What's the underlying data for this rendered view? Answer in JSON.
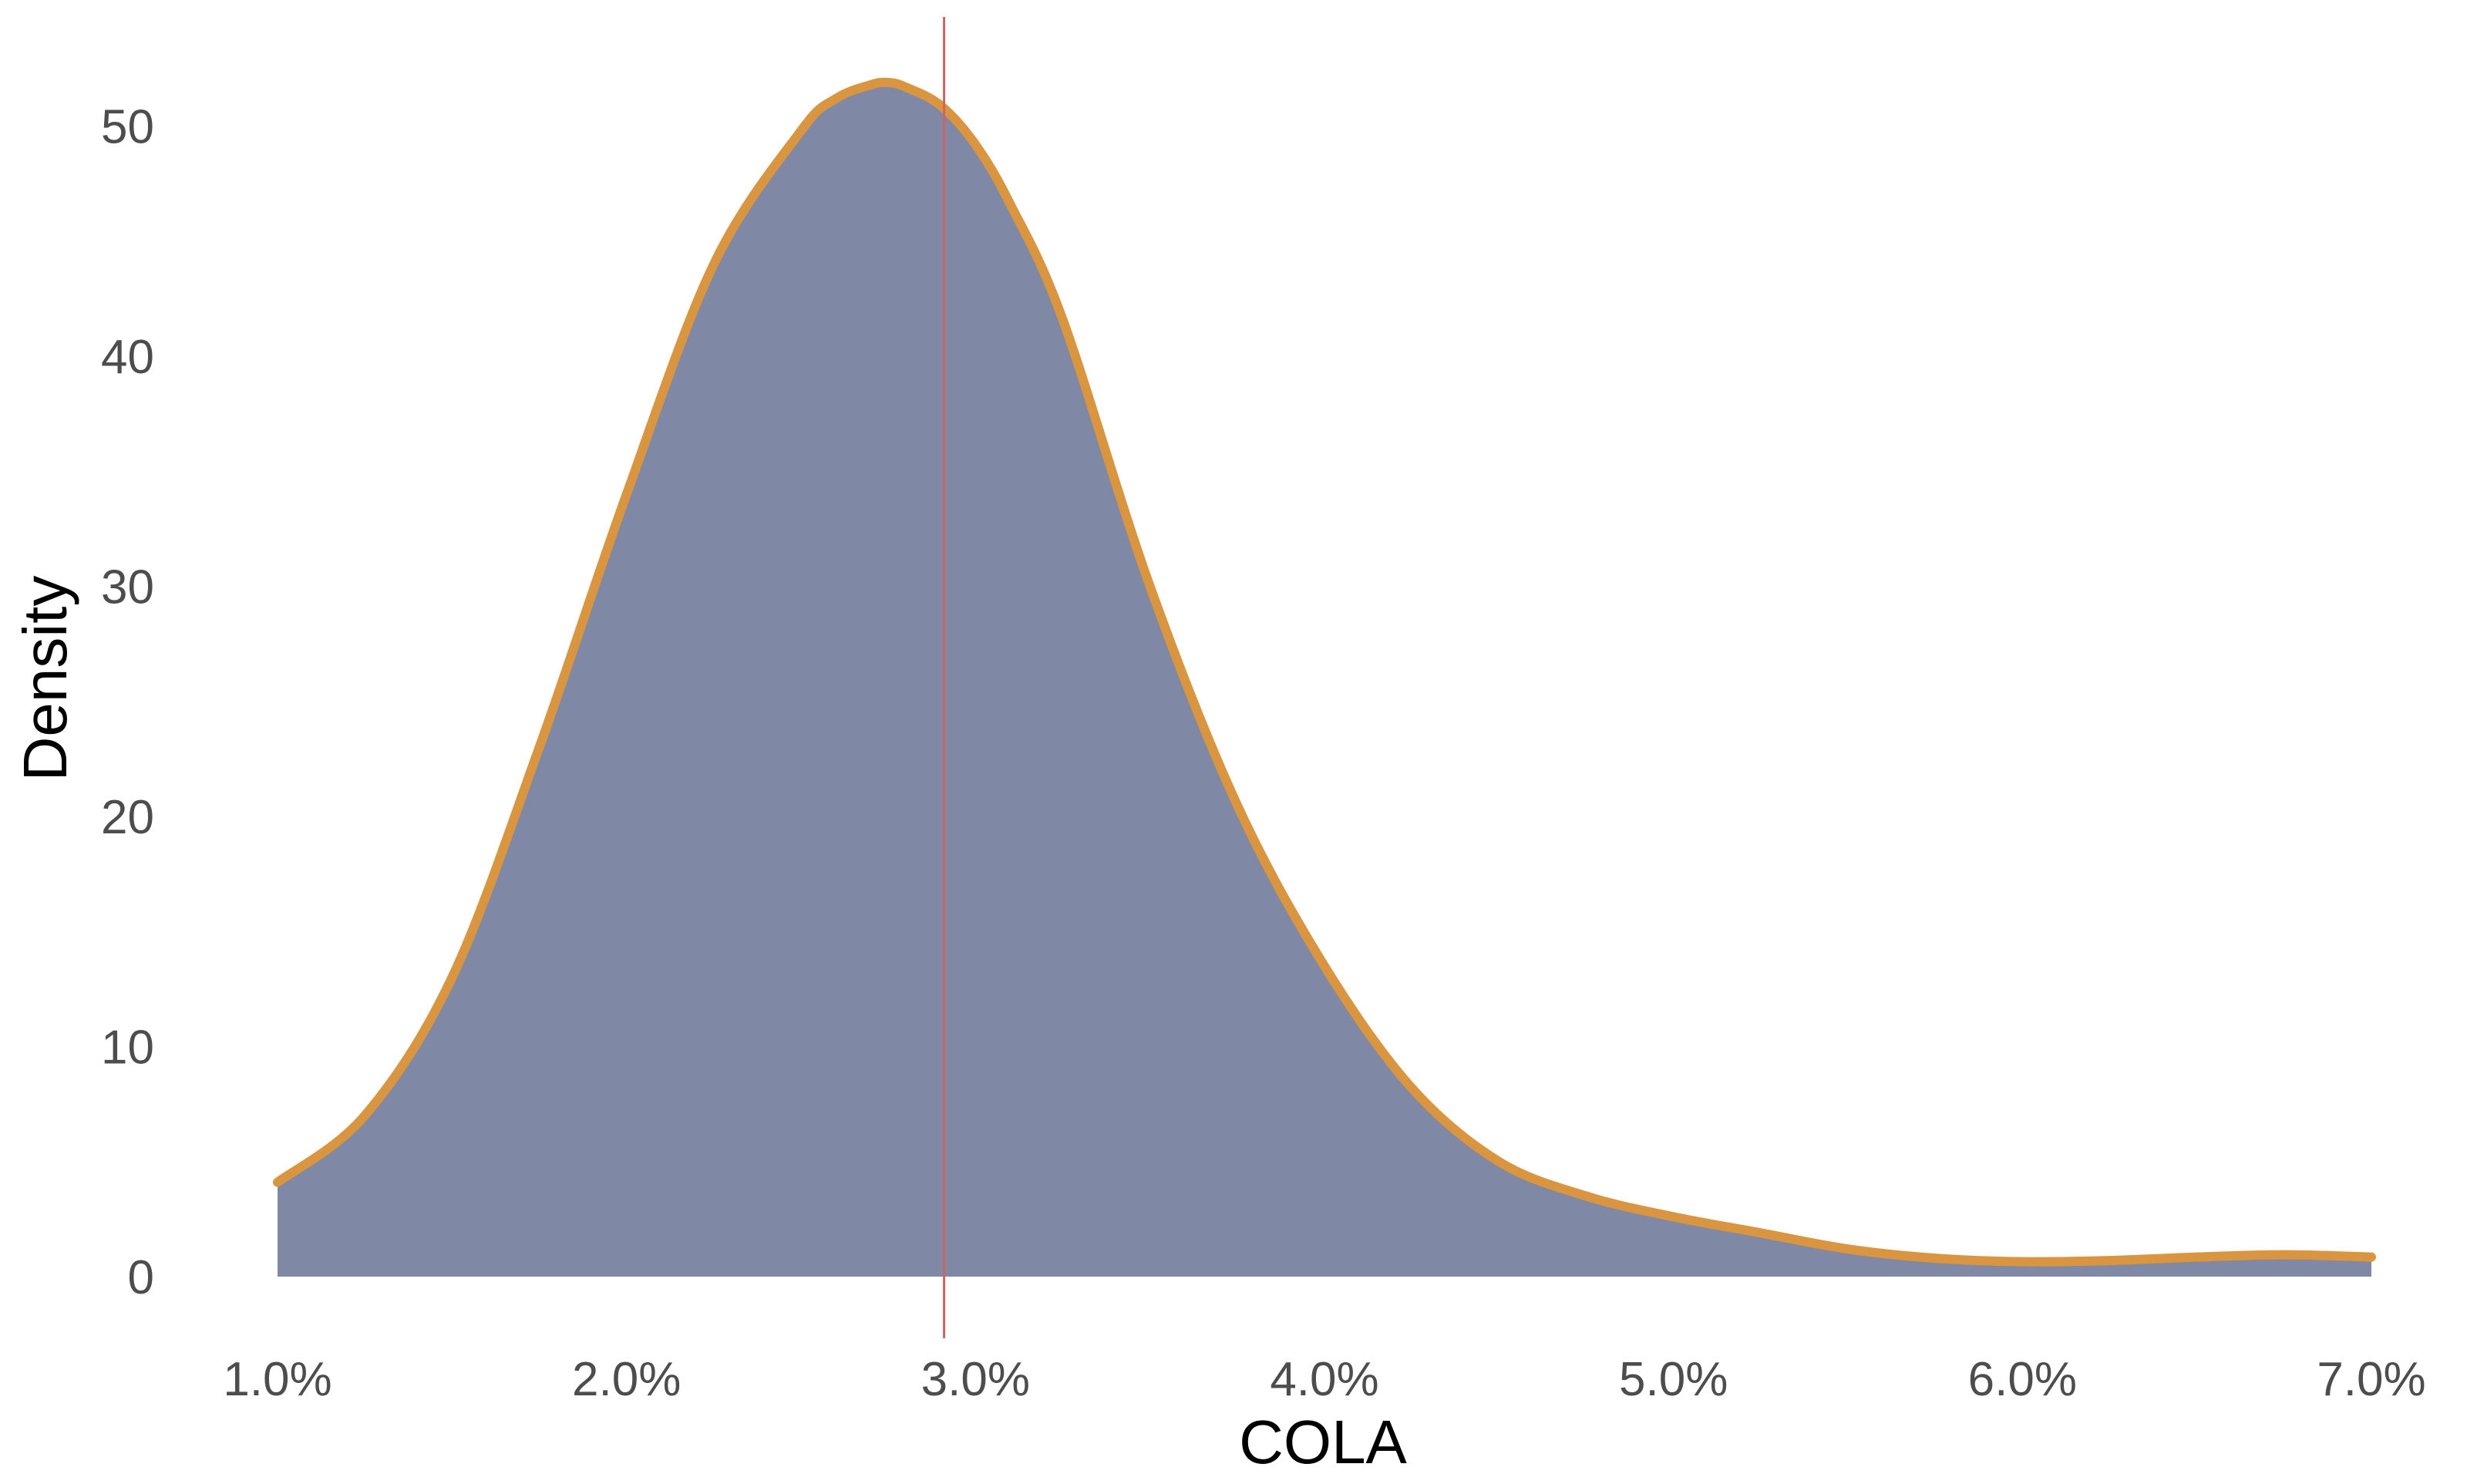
{
  "chart_data": {
    "type": "area",
    "title": "",
    "xlabel": "COLA",
    "ylabel": "Density",
    "xlim": [
      0.01,
      0.07
    ],
    "ylim": [
      0,
      52
    ],
    "x_ticks": [
      {
        "value": 0.01,
        "label": "1.0%"
      },
      {
        "value": 0.02,
        "label": "2.0%"
      },
      {
        "value": 0.03,
        "label": "3.0%"
      },
      {
        "value": 0.04,
        "label": "4.0%"
      },
      {
        "value": 0.05,
        "label": "5.0%"
      },
      {
        "value": 0.06,
        "label": "6.0%"
      },
      {
        "value": 0.07,
        "label": "7.0%"
      }
    ],
    "y_ticks": [
      {
        "value": 0,
        "label": "0"
      },
      {
        "value": 10,
        "label": "10"
      },
      {
        "value": 20,
        "label": "20"
      },
      {
        "value": 30,
        "label": "30"
      },
      {
        "value": 40,
        "label": "40"
      },
      {
        "value": 50,
        "label": "50"
      }
    ],
    "grid": false,
    "legend": "none",
    "reference_line_x": 0.0291,
    "series": [
      {
        "x": [
          0.01,
          0.0125,
          0.015,
          0.0175,
          0.02,
          0.0225,
          0.025,
          0.026,
          0.027,
          0.0275,
          0.028,
          0.029,
          0.03,
          0.031,
          0.0325,
          0.035,
          0.0375,
          0.04,
          0.0425,
          0.045,
          0.0475,
          0.05,
          0.0525,
          0.055,
          0.0575,
          0.06,
          0.0625,
          0.065,
          0.0675,
          0.07
        ],
        "y": [
          4.1,
          7.0,
          13.0,
          23.0,
          34.0,
          44.0,
          49.8,
          51.2,
          51.8,
          51.9,
          51.7,
          50.9,
          49.2,
          46.6,
          41.6,
          30.0,
          20.5,
          13.5,
          8.2,
          5.0,
          3.5,
          2.6,
          1.9,
          1.2,
          0.8,
          0.65,
          0.7,
          0.85,
          0.95,
          0.85
        ]
      }
    ],
    "colors": {
      "fill": "#7f89a6",
      "line": "#d9953f",
      "reference_line": "#d16262",
      "tick_text": "#4d4d4d",
      "title_text": "#000000"
    }
  }
}
